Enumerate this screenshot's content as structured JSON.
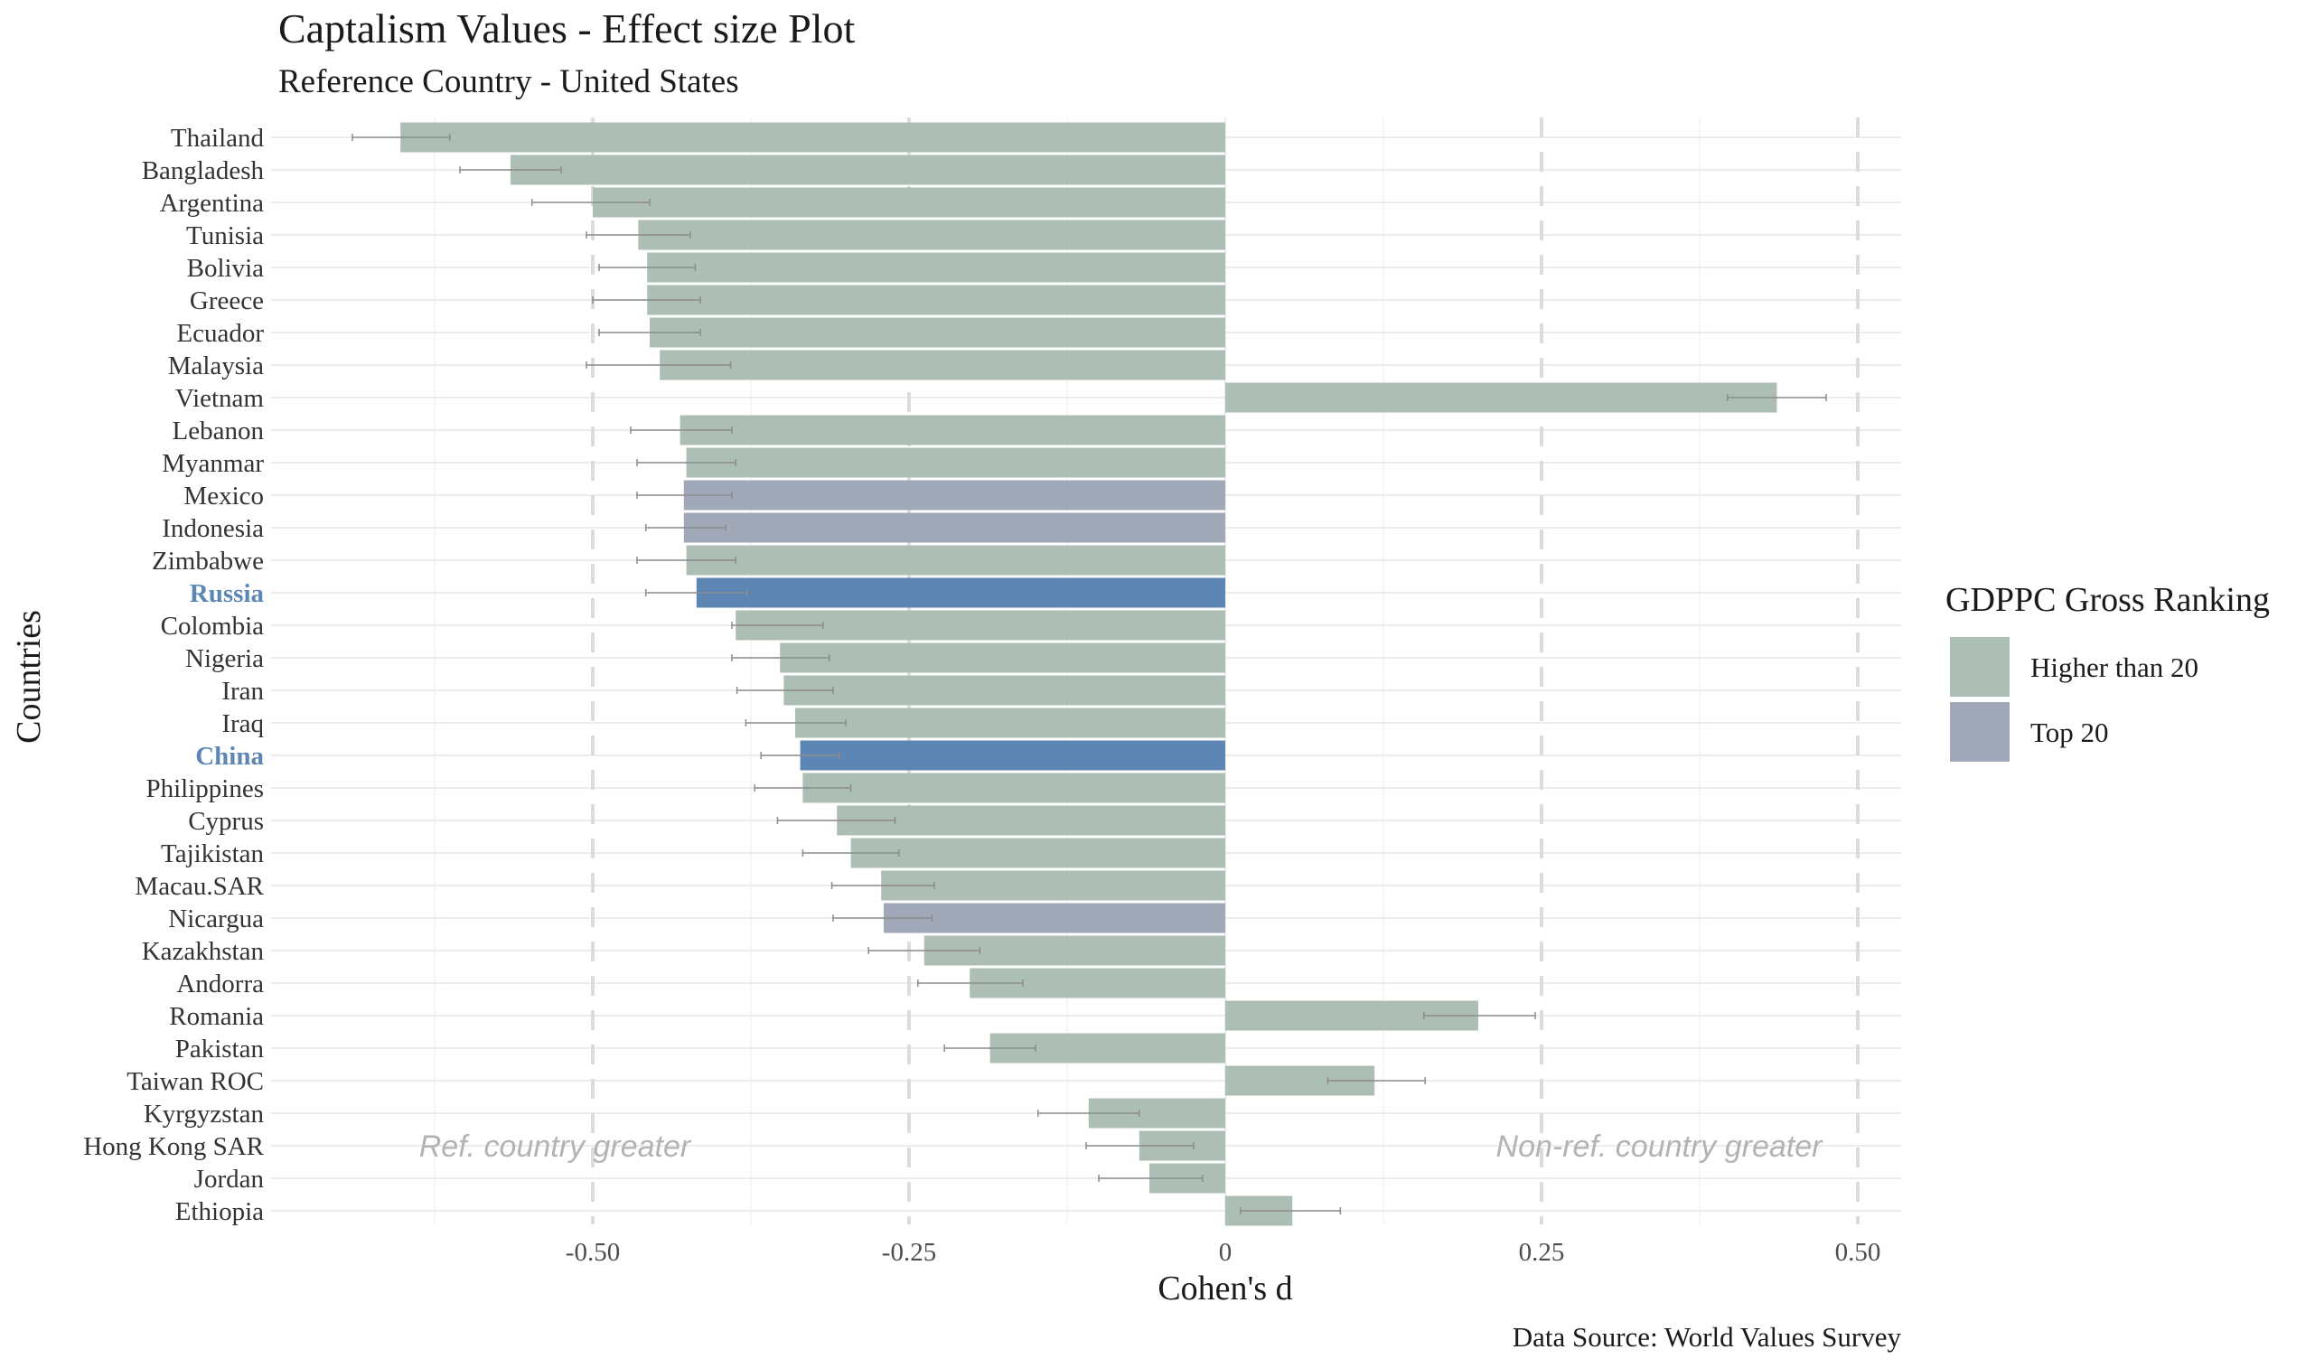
{
  "chart_data": {
    "type": "bar",
    "orientation": "horizontal",
    "title": "Captalism Values - Effect size Plot",
    "subtitle": "Reference Country - United States",
    "xlabel": "Cohen's d",
    "ylabel": "Countries",
    "caption": "Data Source: World Values Survey",
    "xlim": [
      -0.75,
      0.53
    ],
    "x_ticks": [
      -0.5,
      -0.25,
      0,
      0.25,
      0.5
    ],
    "x_tick_labels": [
      "-0.50",
      "-0.25",
      "0",
      "0.25",
      "0.50"
    ],
    "reference_lines": [
      -0.5,
      -0.25,
      0.25,
      0.5
    ],
    "grid": "horizontal major lines, dashed vertical reference lines",
    "legend": {
      "title": "GDPPC Gross Ranking",
      "placement": "right",
      "items": [
        {
          "label": "Higher than 20",
          "color": "#adbfb4"
        },
        {
          "label": "Top 20",
          "color": "#a1a8b8"
        }
      ]
    },
    "highlight_color": "#5d86b4",
    "annotations": [
      {
        "text": "Ref. country greater",
        "x": -0.53
      },
      {
        "text": "Non-ref. country greater",
        "x": 0.3
      }
    ],
    "categories": [
      "Thailand",
      "Bangladesh",
      "Argentina",
      "Tunisia",
      "Bolivia",
      "Greece",
      "Ecuador",
      "Malaysia",
      "Vietnam",
      "Lebanon",
      "Myanmar",
      "Mexico",
      "Indonesia",
      "Zimbabwe",
      "Russia",
      "Colombia",
      "Nigeria",
      "Iran",
      "Iraq",
      "China",
      "Philippines",
      "Cyprus",
      "Tajikistan",
      "Macau.SAR",
      "Nicargua",
      "Kazakhstan",
      "Andorra",
      "Romania",
      "Pakistan",
      "Taiwan ROC",
      "Kyrgyzstan",
      "Hong Kong SAR",
      "Jordan",
      "Ethiopia"
    ],
    "values": [
      -0.652,
      -0.565,
      -0.5,
      -0.464,
      -0.457,
      -0.457,
      -0.455,
      -0.447,
      0.436,
      -0.431,
      -0.426,
      -0.428,
      -0.428,
      -0.426,
      -0.418,
      -0.387,
      -0.352,
      -0.349,
      -0.34,
      -0.336,
      -0.334,
      -0.307,
      -0.296,
      -0.272,
      -0.27,
      -0.238,
      -0.202,
      0.2,
      -0.186,
      0.118,
      -0.108,
      -0.068,
      -0.06,
      0.053
    ],
    "ci_low": [
      -0.69,
      -0.605,
      -0.548,
      -0.505,
      -0.495,
      -0.5,
      -0.495,
      -0.505,
      0.397,
      -0.47,
      -0.465,
      -0.465,
      -0.458,
      -0.465,
      -0.458,
      -0.39,
      -0.39,
      -0.386,
      -0.379,
      -0.367,
      -0.372,
      -0.354,
      -0.334,
      -0.311,
      -0.31,
      -0.282,
      -0.243,
      0.157,
      -0.222,
      0.081,
      -0.148,
      -0.11,
      -0.1,
      0.012
    ],
    "ci_high": [
      -0.613,
      -0.525,
      -0.455,
      -0.423,
      -0.419,
      -0.415,
      -0.415,
      -0.391,
      0.475,
      -0.39,
      -0.387,
      -0.39,
      -0.395,
      -0.387,
      -0.378,
      -0.318,
      -0.313,
      -0.31,
      -0.3,
      -0.305,
      -0.296,
      -0.261,
      -0.258,
      -0.23,
      -0.232,
      -0.194,
      -0.16,
      0.245,
      -0.15,
      0.158,
      -0.068,
      -0.025,
      -0.018,
      0.091
    ],
    "group": [
      "Higher than 20",
      "Higher than 20",
      "Higher than 20",
      "Higher than 20",
      "Higher than 20",
      "Higher than 20",
      "Higher than 20",
      "Higher than 20",
      "Higher than 20",
      "Higher than 20",
      "Higher than 20",
      "Top 20",
      "Top 20",
      "Higher than 20",
      "Higher than 20",
      "Higher than 20",
      "Higher than 20",
      "Higher than 20",
      "Higher than 20",
      "Higher than 20",
      "Higher than 20",
      "Higher than 20",
      "Higher than 20",
      "Higher than 20",
      "Top 20",
      "Higher than 20",
      "Higher than 20",
      "Higher than 20",
      "Higher than 20",
      "Higher than 20",
      "Higher than 20",
      "Higher than 20",
      "Higher than 20",
      "Higher than 20"
    ],
    "highlighted": [
      "Russia",
      "China"
    ]
  }
}
